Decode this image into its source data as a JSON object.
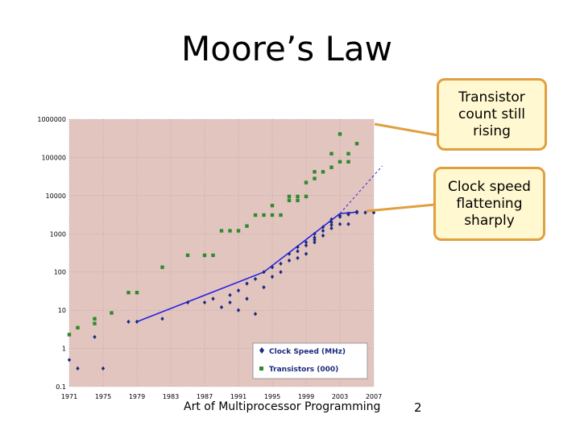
{
  "slide": {
    "title": "Moore’s Law",
    "footer": "Art of Multiprocessor Programming",
    "page_number": "2"
  },
  "callouts": [
    {
      "text": "Transistor count still rising"
    },
    {
      "text": "Clock speed flattening sharply"
    }
  ],
  "colors": {
    "plot_background": "#e3c5c0",
    "chart_background": "#ffffff",
    "clock_color": "#1a2a80",
    "transistor_color": "#2f8a2f",
    "trend_line_color": "#2323e0",
    "callout_fill": "#fff8d0",
    "callout_border": "#e0a040"
  },
  "chart_data": {
    "type": "scatter",
    "y_scale": "log",
    "ylim": [
      0.1,
      1000000
    ],
    "xlim": [
      1971,
      2007
    ],
    "x_ticks": [
      "1971",
      "1975",
      "1979",
      "1983",
      "1987",
      "1991",
      "1995",
      "1999",
      "2003",
      "2007"
    ],
    "y_ticks": [
      "1000000",
      "100000",
      "10000",
      "1000",
      "100",
      "10",
      "1",
      "0.1"
    ],
    "grid": true,
    "legend_position": "bottom-right",
    "series": [
      {
        "name": "Clock Speed (MHz)",
        "marker": "diamond",
        "points": [
          [
            1971,
            0.5
          ],
          [
            1972,
            0.3
          ],
          [
            1974,
            2
          ],
          [
            1975,
            0.3
          ],
          [
            1978,
            5
          ],
          [
            1979,
            5
          ],
          [
            1982,
            6
          ],
          [
            1985,
            16
          ],
          [
            1987,
            16
          ],
          [
            1988,
            20
          ],
          [
            1989,
            12
          ],
          [
            1990,
            25
          ],
          [
            1990,
            16
          ],
          [
            1991,
            33
          ],
          [
            1991,
            10
          ],
          [
            1992,
            50
          ],
          [
            1992,
            20
          ],
          [
            1993,
            66
          ],
          [
            1993,
            8
          ],
          [
            1994,
            100
          ],
          [
            1994,
            40
          ],
          [
            1995,
            133
          ],
          [
            1995,
            75
          ],
          [
            1996,
            166
          ],
          [
            1996,
            100
          ],
          [
            1997,
            200
          ],
          [
            1997,
            300
          ],
          [
            1998,
            233
          ],
          [
            1998,
            350
          ],
          [
            1998,
            450
          ],
          [
            1999,
            300
          ],
          [
            1999,
            500
          ],
          [
            1999,
            600
          ],
          [
            2000,
            700
          ],
          [
            2000,
            800
          ],
          [
            2000,
            1000
          ],
          [
            2000,
            600
          ],
          [
            2001,
            1200
          ],
          [
            2001,
            1500
          ],
          [
            2001,
            900
          ],
          [
            2002,
            1700
          ],
          [
            2002,
            2000
          ],
          [
            2002,
            1400
          ],
          [
            2002,
            2400
          ],
          [
            2003,
            2800
          ],
          [
            2003,
            3000
          ],
          [
            2003,
            1800
          ],
          [
            2004,
            3200
          ],
          [
            2004,
            3400
          ],
          [
            2004,
            1800
          ],
          [
            2005,
            3600
          ],
          [
            2005,
            3800
          ],
          [
            2006,
            3600
          ],
          [
            2007,
            3600
          ]
        ]
      },
      {
        "name": "Transistors (000)",
        "marker": "square",
        "points": [
          [
            1971,
            2.3
          ],
          [
            1972,
            3.5
          ],
          [
            1974,
            4.5
          ],
          [
            1974,
            6
          ],
          [
            1976,
            8.5
          ],
          [
            1978,
            29
          ],
          [
            1979,
            29
          ],
          [
            1982,
            134
          ],
          [
            1985,
            275
          ],
          [
            1987,
            275
          ],
          [
            1988,
            275
          ],
          [
            1989,
            1200
          ],
          [
            1990,
            1200
          ],
          [
            1991,
            1200
          ],
          [
            1992,
            1600
          ],
          [
            1993,
            3100
          ],
          [
            1994,
            3100
          ],
          [
            1995,
            3100
          ],
          [
            1995,
            5500
          ],
          [
            1996,
            3100
          ],
          [
            1997,
            7500
          ],
          [
            1997,
            9500
          ],
          [
            1998,
            7500
          ],
          [
            1998,
            9500
          ],
          [
            1999,
            9500
          ],
          [
            1999,
            22000
          ],
          [
            2000,
            28000
          ],
          [
            2000,
            42000
          ],
          [
            2001,
            42000
          ],
          [
            2002,
            55000
          ],
          [
            2002,
            125000
          ],
          [
            2003,
            77000
          ],
          [
            2003,
            410000
          ],
          [
            2004,
            77000
          ],
          [
            2004,
            125000
          ],
          [
            2005,
            230000
          ]
        ]
      },
      {
        "name": "",
        "style": "line",
        "points": [
          [
            1979,
            5
          ],
          [
            1994,
            100
          ],
          [
            2003,
            3400
          ],
          [
            2005,
            3700
          ]
        ]
      },
      {
        "name": "",
        "style": "dashed",
        "points": [
          [
            2003,
            3400
          ],
          [
            2008,
            60000
          ]
        ]
      }
    ]
  }
}
